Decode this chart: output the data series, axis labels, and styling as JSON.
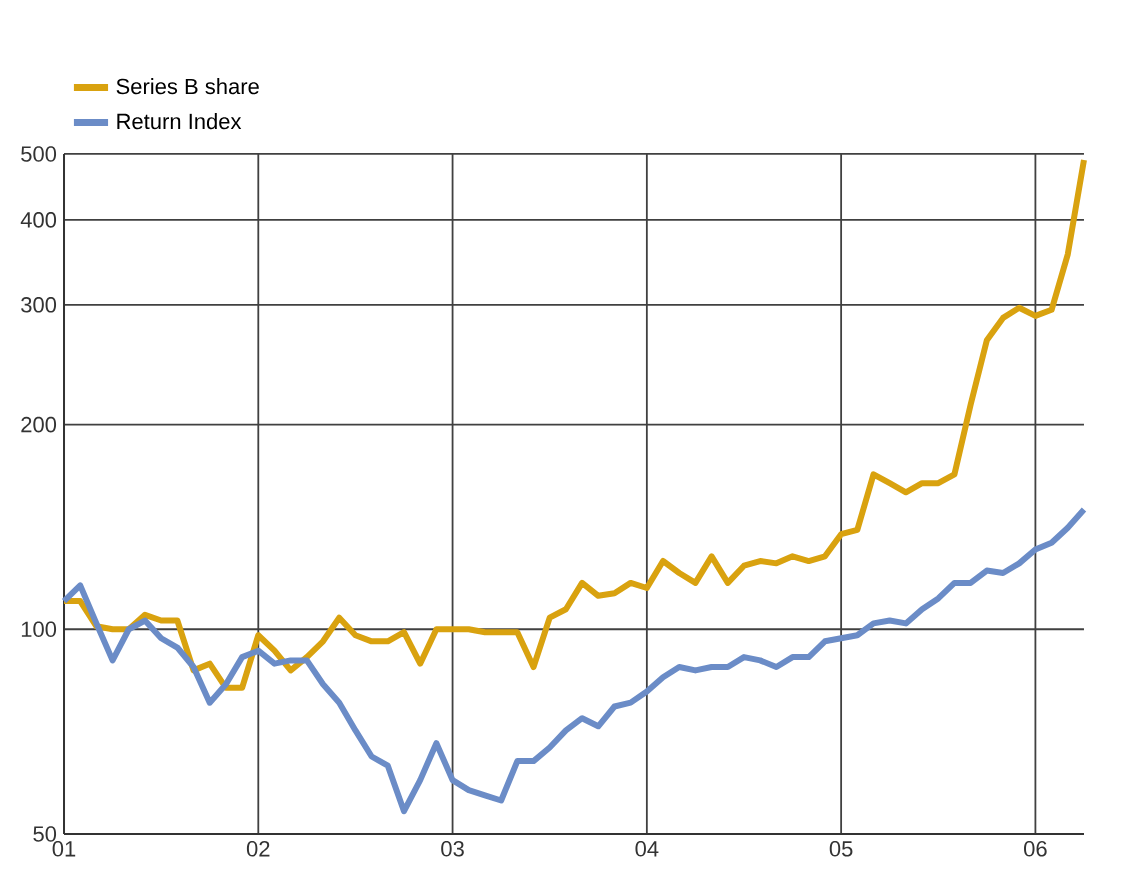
{
  "chart_data": {
    "type": "line",
    "x": [
      "2001-01",
      "2001-02",
      "2001-03",
      "2001-04",
      "2001-05",
      "2001-06",
      "2001-07",
      "2001-08",
      "2001-09",
      "2001-10",
      "2001-11",
      "2001-12",
      "2002-01",
      "2002-02",
      "2002-03",
      "2002-04",
      "2002-05",
      "2002-06",
      "2002-07",
      "2002-08",
      "2002-09",
      "2002-10",
      "2002-11",
      "2002-12",
      "2003-01",
      "2003-02",
      "2003-03",
      "2003-04",
      "2003-05",
      "2003-06",
      "2003-07",
      "2003-08",
      "2003-09",
      "2003-10",
      "2003-11",
      "2003-12",
      "2004-01",
      "2004-02",
      "2004-03",
      "2004-04",
      "2004-05",
      "2004-06",
      "2004-07",
      "2004-08",
      "2004-09",
      "2004-10",
      "2004-11",
      "2004-12",
      "2005-01",
      "2005-02",
      "2005-03",
      "2005-04",
      "2005-05",
      "2005-06",
      "2005-07",
      "2005-08",
      "2005-09",
      "2005-10",
      "2005-11",
      "2005-12",
      "2006-01",
      "2006-02",
      "2006-03",
      "2006-04"
    ],
    "series": [
      {
        "name": "Series B share",
        "color": "#d9a20f",
        "values": [
          110,
          110,
          101,
          100,
          100,
          105,
          103,
          103,
          87,
          89,
          82,
          82,
          98,
          93,
          87,
          91,
          96,
          104,
          98,
          96,
          96,
          99,
          89,
          100,
          100,
          100,
          99,
          99,
          99,
          88,
          104,
          107,
          117,
          112,
          113,
          117,
          115,
          126,
          121,
          117,
          128,
          117,
          124,
          126,
          125,
          128,
          126,
          128,
          138,
          140,
          169,
          164,
          159,
          164,
          164,
          169,
          214,
          266,
          287,
          297,
          289,
          295,
          356,
          490
        ]
      },
      {
        "name": "Return Index",
        "color": "#6b8cc7",
        "values": [
          110,
          116,
          102,
          90,
          100,
          103,
          97,
          94,
          88,
          78,
          83,
          91,
          93,
          89,
          90,
          90,
          83,
          78,
          71,
          65,
          63,
          54,
          60,
          68,
          60,
          58,
          57,
          56,
          64,
          64,
          67,
          71,
          74,
          72,
          77,
          78,
          81,
          85,
          88,
          87,
          88,
          88,
          91,
          90,
          88,
          91,
          91,
          96,
          97,
          98,
          102,
          103,
          102,
          107,
          111,
          117,
          117,
          122,
          121,
          125,
          131,
          134,
          141,
          150
        ]
      }
    ],
    "xlim": [
      "2001-01",
      "2006-04"
    ],
    "xticks": [
      {
        "value": "2001-01",
        "label": "01"
      },
      {
        "value": "2002-01",
        "label": "02"
      },
      {
        "value": "2003-01",
        "label": "03"
      },
      {
        "value": "2004-01",
        "label": "04"
      },
      {
        "value": "2005-01",
        "label": "05"
      },
      {
        "value": "2006-01",
        "label": "06"
      }
    ],
    "ylim": [
      50,
      500
    ],
    "yticks": [
      50,
      100,
      200,
      300,
      400,
      500
    ],
    "log": "y",
    "grid": true,
    "legend": "top left",
    "marker": "none",
    "line_style": "solid"
  }
}
